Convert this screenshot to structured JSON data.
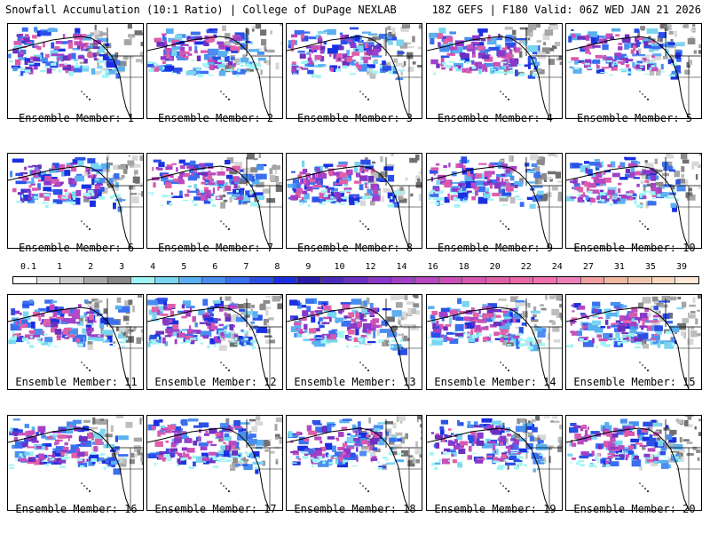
{
  "header": {
    "left": "Snowfall Accumulation (10:1 Ratio) | College of DuPage NEXLAB",
    "right": "18Z GEFS | F180 Valid: 06Z WED JAN 21 2026"
  },
  "members": [
    {
      "label": "Ensemble Member: 1"
    },
    {
      "label": "Ensemble Member: 2"
    },
    {
      "label": "Ensemble Member: 3"
    },
    {
      "label": "Ensemble Member: 4"
    },
    {
      "label": "Ensemble Member: 5"
    },
    {
      "label": "Ensemble Member: 6"
    },
    {
      "label": "Ensemble Member: 7"
    },
    {
      "label": "Ensemble Member: 8"
    },
    {
      "label": "Ensemble Member: 9"
    },
    {
      "label": "Ensemble Member: 10"
    },
    {
      "label": "Ensemble Member: 11"
    },
    {
      "label": "Ensemble Member: 12"
    },
    {
      "label": "Ensemble Member: 13"
    },
    {
      "label": "Ensemble Member: 14"
    },
    {
      "label": "Ensemble Member: 15"
    },
    {
      "label": "Ensemble Member: 16"
    },
    {
      "label": "Ensemble Member: 17"
    },
    {
      "label": "Ensemble Member: 18"
    },
    {
      "label": "Ensemble Member: 19"
    },
    {
      "label": "Ensemble Member: 20"
    }
  ],
  "colorbar": {
    "tick_labels": [
      "0.1",
      "1",
      "2",
      "3",
      "4",
      "5",
      "6",
      "7",
      "8",
      "9",
      "10",
      "12",
      "14",
      "16",
      "18",
      "20",
      "22",
      "24",
      "27",
      "31",
      "35",
      "39"
    ],
    "colors": [
      "#ffffff",
      "#e6e6e6",
      "#cccccc",
      "#a8a8a8",
      "#8a8a8a",
      "#9ff5f5",
      "#79d5f0",
      "#5ab0f0",
      "#4a8ef0",
      "#3a6ff0",
      "#2a50e8",
      "#1a30e0",
      "#2a1aa8",
      "#4a2ab8",
      "#6a30c0",
      "#8a38c8",
      "#a040c8",
      "#b848c0",
      "#c850b8",
      "#d858b0",
      "#e060a8",
      "#e868a8",
      "#f070b0",
      "#f080b8",
      "#f0a0a0",
      "#f0b8a0",
      "#f0c8b0",
      "#f8d8c0",
      "#fce8d8"
    ]
  },
  "icons": {
    "panel_map": "snowfall-map-icon"
  }
}
